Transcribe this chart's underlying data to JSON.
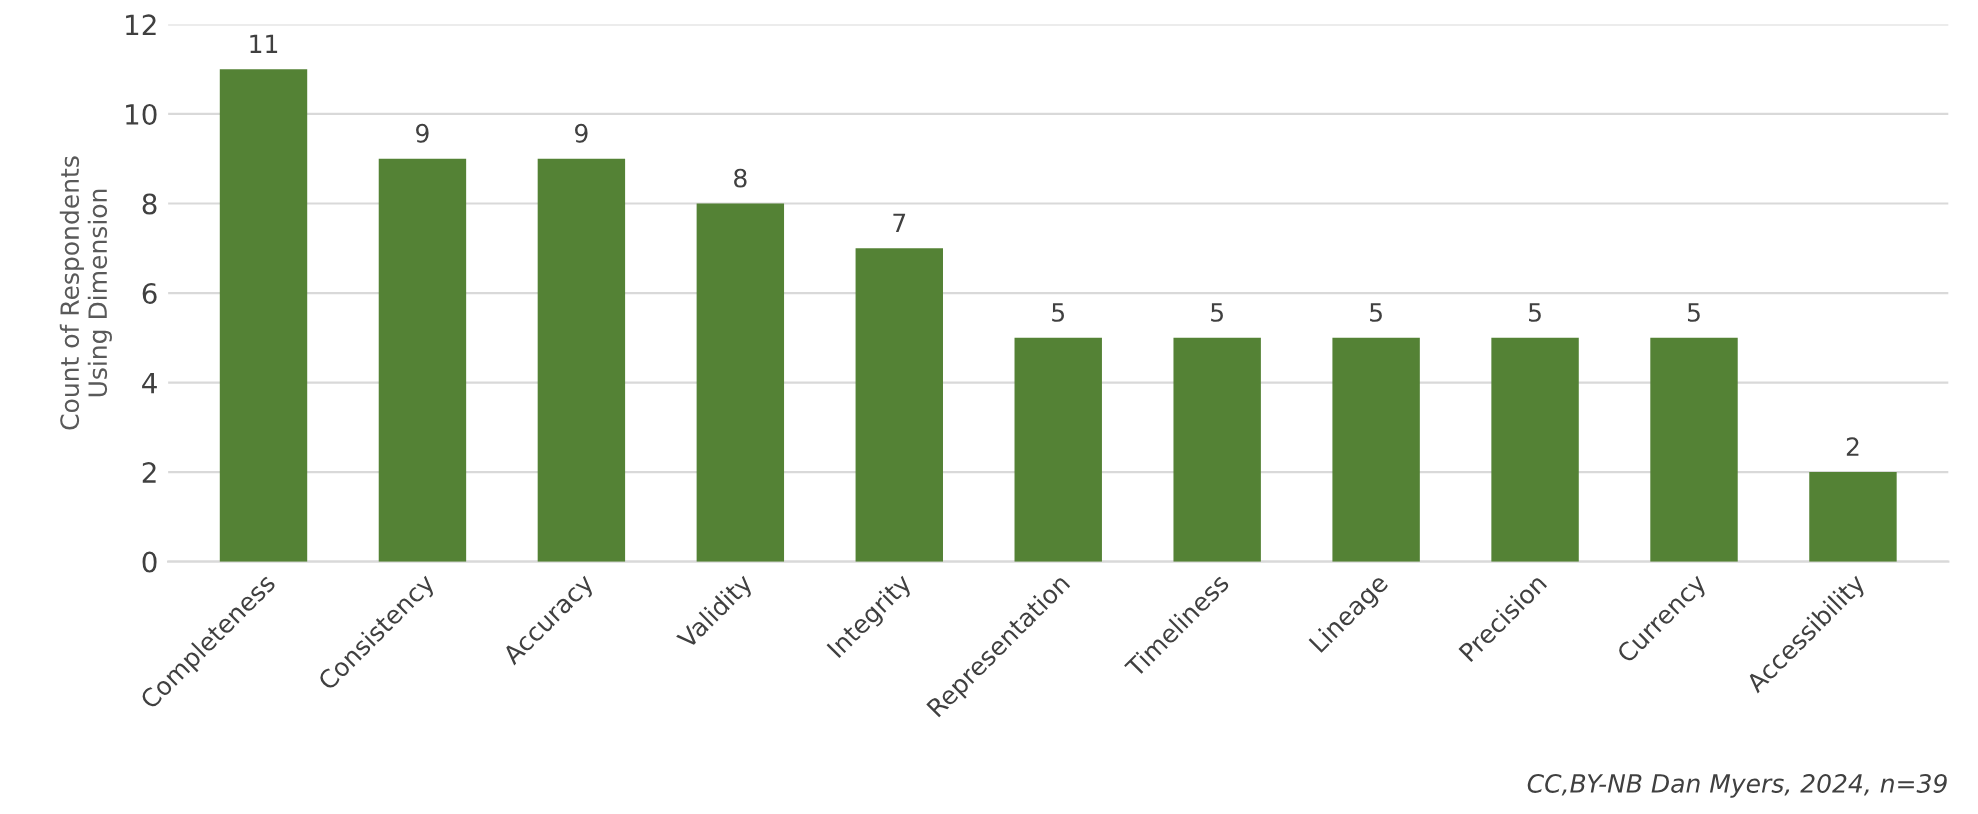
{
  "chart_data": {
    "type": "bar",
    "categories": [
      "Completeness",
      "Consistency",
      "Accuracy",
      "Validity",
      "Integrity",
      "Representation",
      "Timeliness",
      "Lineage",
      "Precision",
      "Currency",
      "Accessibility"
    ],
    "values": [
      11,
      9,
      9,
      8,
      7,
      5,
      5,
      5,
      5,
      5,
      2
    ],
    "color": "#548235",
    "ylabel": "Count of Respondents\nUsing Dimension",
    "ylim": [
      0,
      12
    ],
    "yticks": [
      0,
      2,
      4,
      6,
      8,
      10,
      12
    ],
    "grid": "y",
    "data_labels": true,
    "annotations": [
      "CC,BY-NB Dan Myers, 2024, n=39"
    ]
  }
}
